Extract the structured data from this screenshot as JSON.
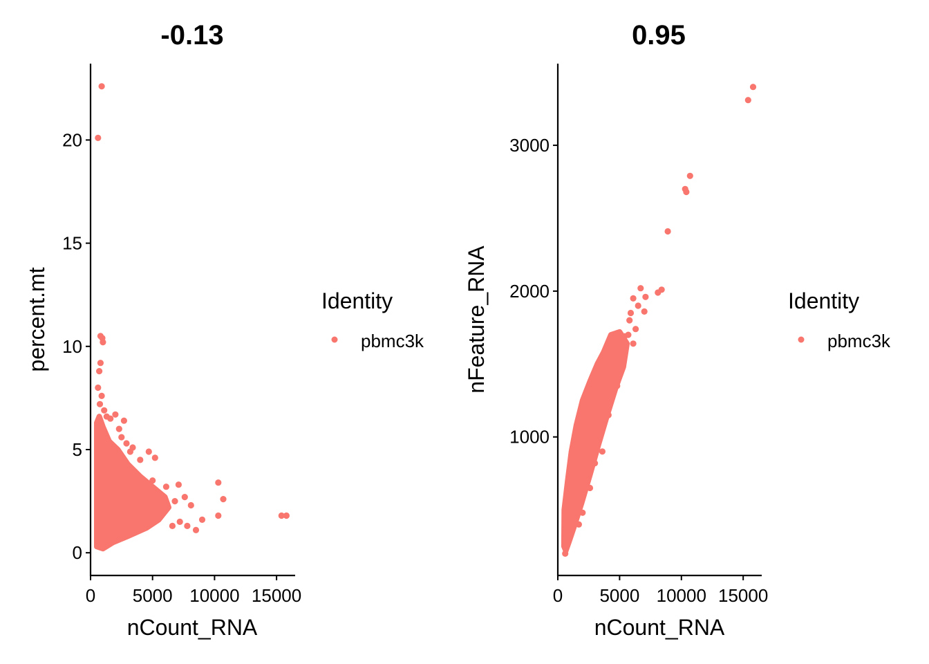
{
  "colors": {
    "point": "#F8766D",
    "axis": "#000000"
  },
  "chart_data": [
    {
      "type": "scatter",
      "title": "-0.13",
      "xlabel": "nCount_RNA",
      "ylabel": "percent.mt",
      "xlim": [
        0,
        16500
      ],
      "ylim": [
        -1.1,
        23.7
      ],
      "xticks": [
        0,
        5000,
        10000,
        15000
      ],
      "xtick_labels": [
        "0",
        "5000",
        "10000",
        "15000"
      ],
      "yticks": [
        0,
        5,
        10,
        15,
        20
      ],
      "ytick_labels": [
        "0",
        "5",
        "10",
        "15",
        "20"
      ],
      "legend": {
        "title": "Identity",
        "position": "right",
        "entries": [
          "pbmc3k"
        ]
      },
      "series": [
        {
          "points": [
            [
              900,
              22.6
            ],
            [
              600,
              20.1
            ],
            [
              800,
              10.5
            ],
            [
              950,
              10.4
            ],
            [
              1000,
              10.2
            ],
            [
              800,
              9.2
            ],
            [
              700,
              8.8
            ],
            [
              600,
              8.0
            ],
            [
              900,
              7.6
            ],
            [
              750,
              7.2
            ],
            [
              1100,
              6.9
            ],
            [
              1300,
              6.6
            ],
            [
              1600,
              6.5
            ],
            [
              2000,
              6.7
            ],
            [
              2700,
              6.4
            ],
            [
              2300,
              6.0
            ],
            [
              2500,
              5.6
            ],
            [
              2900,
              5.3
            ],
            [
              3400,
              5.1
            ],
            [
              3200,
              4.9
            ],
            [
              4000,
              4.5
            ],
            [
              4700,
              4.9
            ],
            [
              5200,
              4.6
            ],
            [
              5000,
              3.5
            ],
            [
              6100,
              3.2
            ],
            [
              7100,
              3.3
            ],
            [
              6800,
              2.5
            ],
            [
              7600,
              2.7
            ],
            [
              8100,
              2.3
            ],
            [
              10300,
              3.4
            ],
            [
              10700,
              2.6
            ],
            [
              9000,
              1.6
            ],
            [
              10300,
              1.8
            ],
            [
              8500,
              1.1
            ],
            [
              7800,
              1.3
            ],
            [
              7200,
              1.5
            ],
            [
              6600,
              1.3
            ],
            [
              5500,
              1.8
            ],
            [
              15400,
              1.8
            ],
            [
              15800,
              1.8
            ]
          ]
        }
      ]
    },
    {
      "type": "scatter",
      "title": "0.95",
      "xlabel": "nCount_RNA",
      "ylabel": "nFeature_RNA",
      "xlim": [
        0,
        16500
      ],
      "ylim": [
        50,
        3560
      ],
      "xticks": [
        0,
        5000,
        10000,
        15000
      ],
      "xtick_labels": [
        "0",
        "5000",
        "10000",
        "15000"
      ],
      "yticks": [
        1000,
        2000,
        3000
      ],
      "ytick_labels": [
        "1000",
        "2000",
        "3000"
      ],
      "legend": {
        "title": "Identity",
        "position": "right",
        "entries": [
          "pbmc3k"
        ]
      },
      "series": [
        {
          "points": [
            [
              15800,
              3400
            ],
            [
              15400,
              3310
            ],
            [
              10700,
              2790
            ],
            [
              10300,
              2700
            ],
            [
              10400,
              2680
            ],
            [
              8900,
              2410
            ],
            [
              8400,
              2010
            ],
            [
              8100,
              1990
            ],
            [
              6700,
              2020
            ],
            [
              7100,
              1960
            ],
            [
              6100,
              1950
            ],
            [
              6500,
              1900
            ],
            [
              7000,
              1860
            ],
            [
              5900,
              1850
            ],
            [
              5800,
              1800
            ],
            [
              6300,
              1740
            ],
            [
              5700,
              1700
            ],
            [
              5400,
              1690
            ],
            [
              6100,
              1640
            ],
            [
              5200,
              1600
            ],
            [
              5000,
              1550
            ],
            [
              4300,
              1650
            ],
            [
              4600,
              1500
            ],
            [
              3200,
              1420
            ],
            [
              2800,
              1300
            ],
            [
              2500,
              1250
            ],
            [
              4800,
              1350
            ],
            [
              4100,
              1150
            ],
            [
              3600,
              900
            ],
            [
              3000,
              820
            ],
            [
              2600,
              650
            ],
            [
              2000,
              480
            ],
            [
              1700,
              400
            ],
            [
              600,
              200
            ],
            [
              700,
              250
            ]
          ]
        }
      ]
    }
  ]
}
